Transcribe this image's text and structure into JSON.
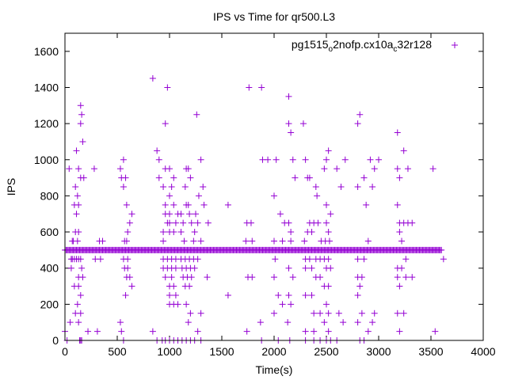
{
  "chart_data": {
    "type": "scatter",
    "title": "IPS vs Time for qr500.L3",
    "xlabel": "Time(s)",
    "ylabel": "IPS",
    "xlim": [
      0,
      4000
    ],
    "ylim": [
      0,
      1700
    ],
    "xticks": [
      0,
      500,
      1000,
      1500,
      2000,
      2500,
      3000,
      3500,
      4000
    ],
    "yticks": [
      0,
      200,
      400,
      600,
      800,
      1000,
      1200,
      1400,
      1600
    ],
    "grid": false,
    "legend_position": "top-right",
    "legend_label": {
      "base": "pg1515",
      "sub1": "o",
      "mid": "2nofp.cx10a",
      "sub2": "c",
      "tail": "32r128"
    },
    "marker": "+",
    "color": "#9400d3",
    "baseline": {
      "y": 500,
      "x_start": 0,
      "x_end": 3600,
      "step": 10
    },
    "series": [
      {
        "points": [
          [
            150,
            1300
          ],
          [
            160,
            1250
          ],
          [
            150,
            1200
          ],
          [
            170,
            1100
          ],
          [
            110,
            1050
          ],
          [
            40,
            950
          ],
          [
            130,
            950
          ],
          [
            180,
            900
          ],
          [
            150,
            900
          ],
          [
            100,
            850
          ],
          [
            120,
            800
          ],
          [
            90,
            750
          ],
          [
            130,
            750
          ],
          [
            110,
            700
          ],
          [
            70,
            550
          ],
          [
            80,
            550
          ],
          [
            120,
            550
          ],
          [
            100,
            600
          ],
          [
            130,
            600
          ],
          [
            60,
            450
          ],
          [
            70,
            450
          ],
          [
            90,
            450
          ],
          [
            110,
            450
          ],
          [
            130,
            450
          ],
          [
            150,
            450
          ],
          [
            60,
            400
          ],
          [
            160,
            400
          ],
          [
            130,
            350
          ],
          [
            170,
            350
          ],
          [
            130,
            300
          ],
          [
            90,
            300
          ],
          [
            150,
            250
          ],
          [
            120,
            200
          ],
          [
            100,
            150
          ],
          [
            150,
            150
          ],
          [
            50,
            100
          ],
          [
            130,
            100
          ],
          [
            0,
            50
          ],
          [
            220,
            50
          ],
          [
            20,
            0
          ],
          [
            140,
            0
          ],
          [
            150,
            0
          ],
          [
            160,
            0
          ],
          [
            280,
            950
          ],
          [
            330,
            550
          ],
          [
            360,
            550
          ],
          [
            290,
            450
          ],
          [
            340,
            450
          ],
          [
            310,
            50
          ],
          [
            530,
            950
          ],
          [
            560,
            1000
          ],
          [
            540,
            900
          ],
          [
            580,
            900
          ],
          [
            560,
            850
          ],
          [
            590,
            750
          ],
          [
            620,
            650
          ],
          [
            640,
            700
          ],
          [
            600,
            600
          ],
          [
            570,
            550
          ],
          [
            590,
            550
          ],
          [
            560,
            450
          ],
          [
            600,
            450
          ],
          [
            570,
            400
          ],
          [
            600,
            400
          ],
          [
            590,
            350
          ],
          [
            620,
            350
          ],
          [
            580,
            250
          ],
          [
            640,
            300
          ],
          [
            530,
            100
          ],
          [
            540,
            50
          ],
          [
            560,
            0
          ],
          [
            840,
            1450
          ],
          [
            880,
            1050
          ],
          [
            960,
            1200
          ],
          [
            980,
            1400
          ],
          [
            900,
            1000
          ],
          [
            960,
            950
          ],
          [
            900,
            900
          ],
          [
            1000,
            950
          ],
          [
            1040,
            900
          ],
          [
            1020,
            850
          ],
          [
            1000,
            800
          ],
          [
            940,
            850
          ],
          [
            960,
            750
          ],
          [
            1000,
            650
          ],
          [
            1040,
            750
          ],
          [
            1000,
            700
          ],
          [
            960,
            700
          ],
          [
            980,
            650
          ],
          [
            940,
            600
          ],
          [
            1060,
            650
          ],
          [
            1080,
            700
          ],
          [
            940,
            550
          ],
          [
            1000,
            600
          ],
          [
            1040,
            600
          ],
          [
            940,
            450
          ],
          [
            980,
            450
          ],
          [
            1020,
            450
          ],
          [
            1060,
            450
          ],
          [
            940,
            400
          ],
          [
            980,
            400
          ],
          [
            1020,
            400
          ],
          [
            1060,
            400
          ],
          [
            960,
            350
          ],
          [
            1020,
            350
          ],
          [
            1000,
            300
          ],
          [
            1040,
            300
          ],
          [
            1000,
            250
          ],
          [
            1060,
            250
          ],
          [
            1000,
            200
          ],
          [
            1040,
            200
          ],
          [
            1080,
            200
          ],
          [
            840,
            50
          ],
          [
            880,
            0
          ],
          [
            930,
            0
          ],
          [
            960,
            0
          ],
          [
            1000,
            0
          ],
          [
            1040,
            0
          ],
          [
            1080,
            0
          ],
          [
            1110,
            700
          ],
          [
            1130,
            650
          ],
          [
            1110,
            600
          ],
          [
            1140,
            550
          ],
          [
            1160,
            950
          ],
          [
            1180,
            950
          ],
          [
            1150,
            850
          ],
          [
            1200,
            900
          ],
          [
            1160,
            750
          ],
          [
            1180,
            750
          ],
          [
            1190,
            700
          ],
          [
            1210,
            650
          ],
          [
            1230,
            550
          ],
          [
            1250,
            700
          ],
          [
            1270,
            650
          ],
          [
            1240,
            600
          ],
          [
            1110,
            450
          ],
          [
            1150,
            450
          ],
          [
            1190,
            450
          ],
          [
            1230,
            450
          ],
          [
            1270,
            450
          ],
          [
            1120,
            400
          ],
          [
            1160,
            400
          ],
          [
            1200,
            400
          ],
          [
            1240,
            400
          ],
          [
            1130,
            350
          ],
          [
            1170,
            350
          ],
          [
            1210,
            350
          ],
          [
            1150,
            300
          ],
          [
            1190,
            300
          ],
          [
            1160,
            200
          ],
          [
            1200,
            150
          ],
          [
            1180,
            100
          ],
          [
            1120,
            0
          ],
          [
            1160,
            0
          ],
          [
            1200,
            0
          ],
          [
            1240,
            0
          ],
          [
            1260,
            1250
          ],
          [
            1300,
            1000
          ],
          [
            1320,
            850
          ],
          [
            1280,
            800
          ],
          [
            1330,
            750
          ],
          [
            1300,
            550
          ],
          [
            1370,
            650
          ],
          [
            1360,
            350
          ],
          [
            1300,
            150
          ],
          [
            1270,
            50
          ],
          [
            1300,
            0
          ],
          [
            1560,
            750
          ],
          [
            1560,
            250
          ],
          [
            1760,
            1400
          ],
          [
            1880,
            1400
          ],
          [
            1890,
            1000
          ],
          [
            1740,
            650
          ],
          [
            1780,
            650
          ],
          [
            1730,
            550
          ],
          [
            1790,
            550
          ],
          [
            1750,
            350
          ],
          [
            1790,
            350
          ],
          [
            1740,
            50
          ],
          [
            1870,
            100
          ],
          [
            1880,
            0
          ],
          [
            1940,
            1000
          ],
          [
            2000,
            800
          ],
          [
            2020,
            1000
          ],
          [
            2060,
            700
          ],
          [
            2100,
            650
          ],
          [
            2000,
            550
          ],
          [
            2080,
            550
          ],
          [
            2010,
            450
          ],
          [
            2000,
            350
          ],
          [
            2040,
            250
          ],
          [
            2080,
            200
          ],
          [
            2000,
            150
          ],
          [
            2040,
            0
          ],
          [
            2140,
            1350
          ],
          [
            2140,
            1200
          ],
          [
            2160,
            1150
          ],
          [
            2180,
            1000
          ],
          [
            2200,
            900
          ],
          [
            2140,
            650
          ],
          [
            2160,
            600
          ],
          [
            2160,
            550
          ],
          [
            2140,
            400
          ],
          [
            2180,
            350
          ],
          [
            2140,
            250
          ],
          [
            2160,
            200
          ],
          [
            2130,
            100
          ],
          [
            2150,
            0
          ],
          [
            2280,
            1200
          ],
          [
            2300,
            1000
          ],
          [
            2320,
            900
          ],
          [
            2340,
            900
          ],
          [
            2340,
            650
          ],
          [
            2290,
            550
          ],
          [
            2320,
            600
          ],
          [
            2360,
            600
          ],
          [
            2380,
            650
          ],
          [
            2400,
            850
          ],
          [
            2410,
            800
          ],
          [
            2420,
            650
          ],
          [
            2450,
            550
          ],
          [
            2300,
            450
          ],
          [
            2340,
            450
          ],
          [
            2400,
            450
          ],
          [
            2440,
            450
          ],
          [
            2300,
            400
          ],
          [
            2360,
            400
          ],
          [
            2400,
            350
          ],
          [
            2440,
            350
          ],
          [
            2300,
            250
          ],
          [
            2360,
            250
          ],
          [
            2380,
            150
          ],
          [
            2440,
            150
          ],
          [
            2300,
            50
          ],
          [
            2380,
            50
          ],
          [
            2300,
            0
          ],
          [
            2380,
            0
          ],
          [
            2440,
            0
          ],
          [
            2480,
            950
          ],
          [
            2520,
            1050
          ],
          [
            2500,
            1000
          ],
          [
            2500,
            750
          ],
          [
            2540,
            700
          ],
          [
            2500,
            650
          ],
          [
            2520,
            600
          ],
          [
            2490,
            550
          ],
          [
            2530,
            550
          ],
          [
            2480,
            450
          ],
          [
            2520,
            450
          ],
          [
            2500,
            400
          ],
          [
            2540,
            400
          ],
          [
            2480,
            300
          ],
          [
            2520,
            300
          ],
          [
            2500,
            200
          ],
          [
            2520,
            150
          ],
          [
            2480,
            100
          ],
          [
            2520,
            50
          ],
          [
            2500,
            0
          ],
          [
            2540,
            0
          ],
          [
            2600,
            950
          ],
          [
            2640,
            850
          ],
          [
            2680,
            1000
          ],
          [
            2620,
            150
          ],
          [
            2600,
            0
          ],
          [
            2660,
            100
          ],
          [
            2800,
            1200
          ],
          [
            2820,
            1250
          ],
          [
            2800,
            850
          ],
          [
            2860,
            900
          ],
          [
            2880,
            750
          ],
          [
            2900,
            550
          ],
          [
            2800,
            450
          ],
          [
            2860,
            450
          ],
          [
            2800,
            350
          ],
          [
            2840,
            350
          ],
          [
            2820,
            300
          ],
          [
            2800,
            250
          ],
          [
            2840,
            150
          ],
          [
            2800,
            100
          ],
          [
            2820,
            0
          ],
          [
            2860,
            0
          ],
          [
            2920,
            1000
          ],
          [
            2960,
            950
          ],
          [
            2940,
            850
          ],
          [
            3000,
            1000
          ],
          [
            2960,
            150
          ],
          [
            2940,
            100
          ],
          [
            2900,
            50
          ],
          [
            3180,
            1150
          ],
          [
            3240,
            1050
          ],
          [
            3180,
            950
          ],
          [
            3200,
            900
          ],
          [
            3280,
            950
          ],
          [
            3180,
            750
          ],
          [
            3200,
            650
          ],
          [
            3240,
            650
          ],
          [
            3280,
            650
          ],
          [
            3320,
            650
          ],
          [
            3200,
            600
          ],
          [
            3220,
            550
          ],
          [
            3260,
            450
          ],
          [
            3180,
            400
          ],
          [
            3220,
            400
          ],
          [
            3180,
            350
          ],
          [
            3260,
            350
          ],
          [
            3320,
            350
          ],
          [
            3200,
            300
          ],
          [
            3180,
            150
          ],
          [
            3240,
            150
          ],
          [
            3200,
            50
          ],
          [
            3520,
            950
          ],
          [
            3540,
            50
          ],
          [
            3620,
            450
          ]
        ]
      }
    ]
  }
}
